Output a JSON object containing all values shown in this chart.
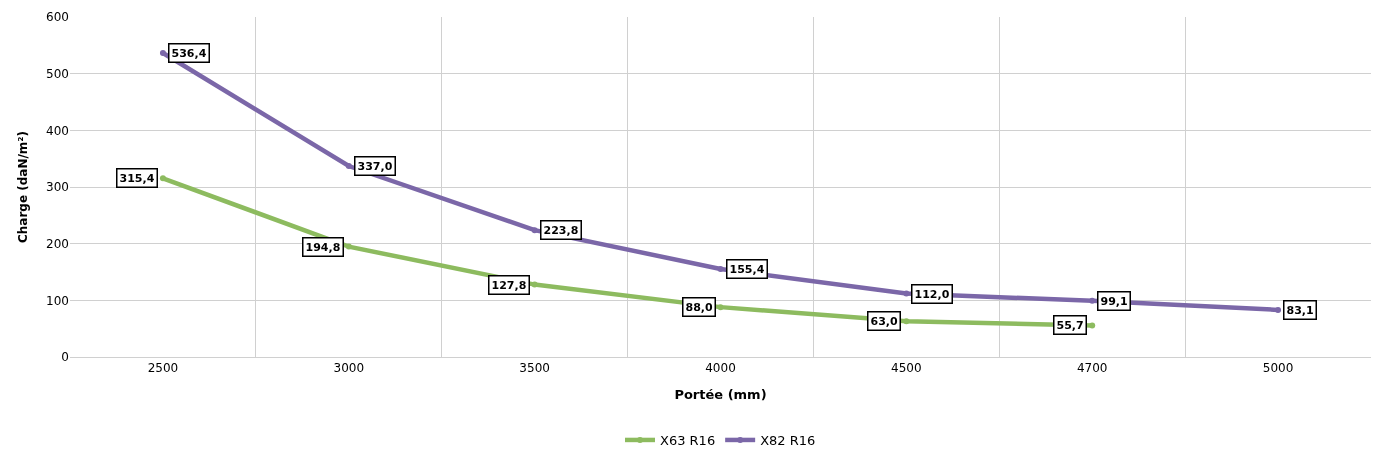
{
  "chart_data": {
    "type": "line",
    "xlabel": "Portée (mm)",
    "ylabel": "Charge (daN/m²)",
    "categories": [
      "2500",
      "3000",
      "3500",
      "4000",
      "4500",
      "4700",
      "5000"
    ],
    "series": [
      {
        "name": "X63 R16",
        "color": "#8dbb5f",
        "values": [
          315.4,
          194.8,
          127.8,
          88.0,
          63.0,
          55.7,
          null
        ],
        "value_labels": [
          "315,4",
          "194,8",
          "127,8",
          "88,0",
          "63,0",
          "55,7",
          null
        ]
      },
      {
        "name": "X82 R16",
        "color": "#7b67a8",
        "values": [
          536.4,
          337.0,
          223.8,
          155.4,
          112.0,
          99.1,
          83.1
        ],
        "value_labels": [
          "536,4",
          "337,0",
          "223,8",
          "155,4",
          "112,0",
          "99,1",
          "83,1"
        ]
      }
    ],
    "ylim": [
      0,
      600
    ],
    "yticks": [
      0,
      100,
      200,
      300,
      400,
      500,
      600
    ],
    "grid": true,
    "legend": "bottom",
    "marker": "circle",
    "line_style": "solid"
  }
}
